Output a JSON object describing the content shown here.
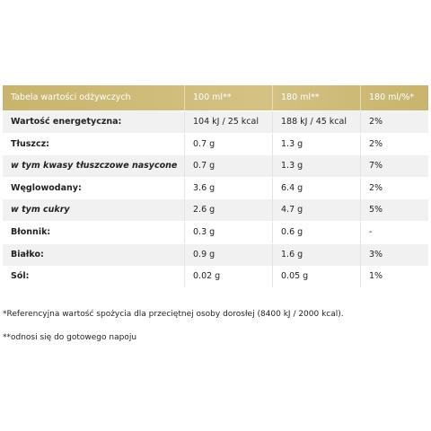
{
  "table": {
    "header": [
      "Tabela wartości odżywczych",
      "100 ml**",
      "180 ml**",
      "180 ml/%*"
    ],
    "rows": [
      [
        "Wartość energetyczna:",
        "104 kJ / 25 kcal",
        "188 kJ / 45 kcal",
        "2%"
      ],
      [
        "Tłuszcz:",
        "0.7 g",
        "1.3 g",
        "2%"
      ],
      [
        "w tym kwasy tłuszczowe nasycone",
        "0.7 g",
        "1.3 g",
        "7%"
      ],
      [
        "Węglowodany:",
        "3.6 g",
        "6.4 g",
        "2%"
      ],
      [
        "w tym cukry",
        "2.6 g",
        "4.7 g",
        "5%"
      ],
      [
        "Błonnik:",
        "0.3 g",
        "0.6 g",
        "-"
      ],
      [
        "Białko:",
        "0.9 g",
        "1.6 g",
        "3%"
      ],
      [
        "Sól:",
        "0.02 g",
        "0.05 g",
        "1%"
      ]
    ]
  },
  "footnotes": [
    "*Referencyjna wartość spożycia dla przeciętnej osoby dorosłej (8400 kJ / 2000 kcal).",
    "**odnosi się do gotowego napoju"
  ]
}
